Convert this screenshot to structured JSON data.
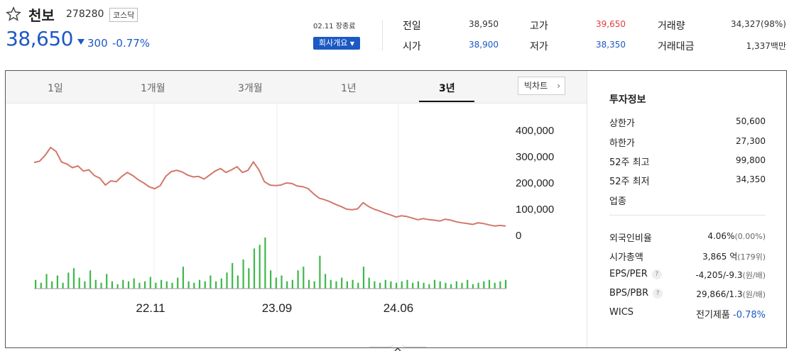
{
  "stock": {
    "name": "천보",
    "code": "278280",
    "market": "코스닥",
    "price": "38,650",
    "change": "300",
    "change_rate": "-0.77%",
    "date_status": "02.11 장종료",
    "company_button": "회사개요"
  },
  "quotes": {
    "prev_close_label": "전일",
    "prev_close": "38,950",
    "open_label": "시가",
    "open": "38,900",
    "high_label": "고가",
    "high": "39,650",
    "low_label": "저가",
    "low": "38,350",
    "volume_label": "거래량",
    "volume": "34,327(98%)",
    "trade_value_label": "거래대금",
    "trade_value": "1,337백만"
  },
  "tabs": [
    {
      "label": "1일"
    },
    {
      "label": "1개월"
    },
    {
      "label": "3개월"
    },
    {
      "label": "1년"
    },
    {
      "label": "3년",
      "active": true
    }
  ],
  "big_chart_label": "빅차트",
  "investment": {
    "title": "투자정보",
    "upper_limit_label": "상한가",
    "upper_limit": "50,600",
    "lower_limit_label": "하한가",
    "lower_limit": "27,300",
    "week52_high_label": "52주 최고",
    "week52_high": "99,800",
    "week52_low_label": "52주 최저",
    "week52_low": "34,350",
    "sector_label": "업종",
    "foreign_ratio_label": "외국인비율",
    "foreign_ratio": "4.06%",
    "foreign_ratio_sub": "(0.00%)",
    "market_cap_label": "시가총액",
    "market_cap": "3,865",
    "market_cap_unit": "억",
    "market_cap_sub": "(179위)",
    "eps_per_label": "EPS/PER",
    "eps_per": "-4,205/-9.3",
    "eps_per_unit": "(원/배)",
    "bps_pbr_label": "BPS/PBR",
    "bps_pbr": "29,866/1.3",
    "bps_pbr_unit": "(원/배)",
    "wics_label": "WICS",
    "wics": "전기제품",
    "wics_change": "-0.78%"
  },
  "colors": {
    "up": "#e23c3c",
    "down": "#1d59c5",
    "price_line": "#d2786b",
    "volume_bar": "#3cb94a"
  },
  "icons": {
    "favorite": "star-outline-icon",
    "dropdown": "caret-down-icon",
    "big_chart": "chevron-right-icon",
    "help": "question-icon"
  },
  "chart_data": {
    "type": "line",
    "y_ticks": [
      "400,000",
      "300,000",
      "200,000",
      "100,000",
      "0"
    ],
    "ylim": [
      0,
      400000
    ],
    "x_tick_labels": [
      "22.11",
      "23.09",
      "24.06"
    ],
    "price_series": [
      278000,
      283000,
      305000,
      335000,
      320000,
      280000,
      272000,
      258000,
      265000,
      245000,
      250000,
      228000,
      218000,
      192000,
      208000,
      205000,
      225000,
      240000,
      228000,
      212000,
      200000,
      185000,
      178000,
      190000,
      225000,
      243000,
      248000,
      242000,
      230000,
      223000,
      225000,
      215000,
      230000,
      245000,
      255000,
      240000,
      250000,
      262000,
      240000,
      248000,
      280000,
      250000,
      205000,
      192000,
      190000,
      192000,
      200000,
      198000,
      188000,
      186000,
      178000,
      158000,
      142000,
      136000,
      128000,
      118000,
      110000,
      100000,
      98000,
      101000,
      125000,
      110000,
      100000,
      93000,
      85000,
      78000,
      70000,
      75000,
      72000,
      66000,
      60000,
      64000,
      60000,
      58000,
      55000,
      62000,
      58000,
      52000,
      48000,
      45000,
      42000,
      48000,
      45000,
      40000,
      36000,
      38000,
      36000
    ],
    "volume_series": [
      12,
      8,
      20,
      10,
      18,
      8,
      22,
      28,
      15,
      10,
      25,
      12,
      8,
      20,
      10,
      6,
      12,
      10,
      14,
      8,
      10,
      16,
      8,
      12,
      10,
      8,
      15,
      30,
      10,
      8,
      12,
      10,
      18,
      10,
      14,
      22,
      35,
      18,
      40,
      28,
      55,
      60,
      70,
      25,
      15,
      18,
      10,
      12,
      25,
      30,
      12,
      10,
      45,
      20,
      12,
      10,
      15,
      10,
      12,
      8,
      30,
      15,
      10,
      8,
      12,
      10,
      8,
      10,
      12,
      8,
      10,
      8,
      6,
      12,
      10,
      8,
      6,
      10,
      8,
      12,
      6,
      8,
      10,
      12,
      8,
      10,
      12
    ]
  }
}
